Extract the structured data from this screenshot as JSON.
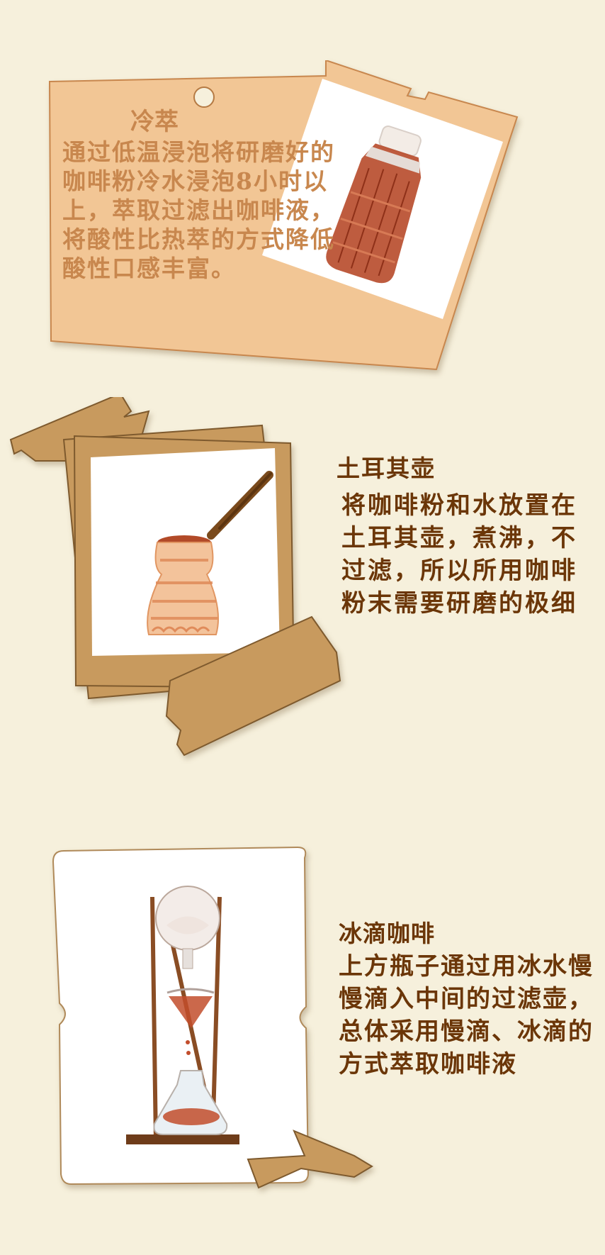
{
  "sections": [
    {
      "title": "冷萃",
      "body": "通过低温浸泡将研磨好的咖啡粉冷水浸泡8小时以上，萃取过滤出咖啡液，将酸性比热萃的方式降低酸性口感丰富。",
      "illustration": "cold-brew-bottle-icon"
    },
    {
      "title": "土耳其壶",
      "body": "将咖啡粉和水放置在土耳其壶，煮沸，不过滤，所以所用咖啡粉末需要研磨的极细",
      "illustration": "turkish-pot-icon"
    },
    {
      "title": "冰滴咖啡",
      "body": "上方瓶子通过用冰水慢慢滴入中间的过滤壶，总体采用慢滴、冰滴的方式萃取咖啡液",
      "illustration": "ice-drip-tower-icon"
    }
  ],
  "colors": {
    "background": "#f6f0dc",
    "card_peach": "#f2c695",
    "card_brown": "#c89a5e",
    "text_light": "#c8874e",
    "text_dark": "#6b3608"
  }
}
